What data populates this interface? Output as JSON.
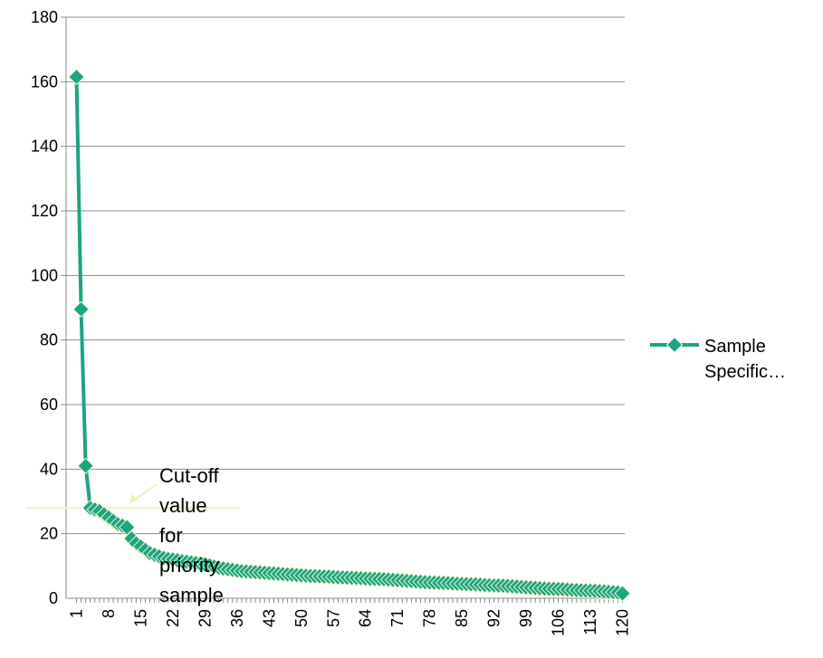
{
  "chart_data": {
    "type": "line",
    "x": [
      1,
      2,
      3,
      4,
      5,
      6,
      7,
      8,
      9,
      10,
      11,
      12,
      13,
      14,
      15,
      16,
      17,
      18,
      19,
      20,
      21,
      22,
      23,
      24,
      25,
      26,
      27,
      28,
      29,
      30,
      31,
      32,
      33,
      34,
      35,
      36,
      37,
      38,
      39,
      40,
      41,
      42,
      43,
      44,
      45,
      46,
      47,
      48,
      49,
      50,
      51,
      52,
      53,
      54,
      55,
      56,
      57,
      58,
      59,
      60,
      61,
      62,
      63,
      64,
      65,
      66,
      67,
      68,
      69,
      70,
      71,
      72,
      73,
      74,
      75,
      76,
      77,
      78,
      79,
      80,
      81,
      82,
      83,
      84,
      85,
      86,
      87,
      88,
      89,
      90,
      91,
      92,
      93,
      94,
      95,
      96,
      97,
      98,
      99,
      100,
      101,
      102,
      103,
      104,
      105,
      106,
      107,
      108,
      109,
      110,
      111,
      112,
      113,
      114,
      115,
      116,
      117,
      118,
      119,
      120
    ],
    "x_tick_labels": [
      "1",
      "8",
      "15",
      "22",
      "29",
      "36",
      "43",
      "50",
      "57",
      "64",
      "71",
      "78",
      "85",
      "92",
      "99",
      "106",
      "113",
      "120"
    ],
    "x_tick_positions": [
      1,
      8,
      15,
      22,
      29,
      36,
      43,
      50,
      57,
      64,
      71,
      78,
      85,
      92,
      99,
      106,
      113,
      120
    ],
    "series": [
      {
        "name": "Sample Specific…",
        "color": "#1aa584",
        "marker": "diamond",
        "values": [
          161.5,
          89.5,
          41,
          28,
          27.5,
          27,
          26,
          25,
          24,
          23,
          22.5,
          22,
          18.5,
          17,
          16,
          15,
          14,
          13.5,
          13,
          12.5,
          12.2,
          12,
          11.8,
          11.5,
          11.3,
          11.1,
          10.9,
          10.7,
          10.5,
          10.2,
          9.8,
          9.5,
          9.2,
          9,
          8.8,
          8.6,
          8.4,
          8.3,
          8.2,
          8.1,
          8,
          7.9,
          7.8,
          7.7,
          7.6,
          7.5,
          7.4,
          7.3,
          7.2,
          7.1,
          7,
          6.9,
          6.85,
          6.8,
          6.75,
          6.7,
          6.6,
          6.5,
          6.45,
          6.4,
          6.35,
          6.3,
          6.2,
          6.1,
          6.05,
          6,
          5.95,
          5.9,
          5.8,
          5.7,
          5.6,
          5.5,
          5.4,
          5.3,
          5.2,
          5.1,
          5,
          4.9,
          4.85,
          4.8,
          4.75,
          4.7,
          4.6,
          4.5,
          4.45,
          4.4,
          4.35,
          4.3,
          4.2,
          4.1,
          4.05,
          4,
          3.95,
          3.9,
          3.8,
          3.7,
          3.6,
          3.5,
          3.4,
          3.3,
          3.2,
          3.1,
          3,
          2.95,
          2.9,
          2.85,
          2.8,
          2.7,
          2.6,
          2.5,
          2.45,
          2.4,
          2.35,
          2.3,
          2.2,
          2.1,
          2,
          1.9,
          1.8,
          1.5
        ]
      }
    ],
    "ylim": [
      0,
      180
    ],
    "y_ticks": [
      0,
      20,
      40,
      60,
      80,
      100,
      120,
      140,
      160,
      180
    ],
    "grid": true,
    "legend_position": "right",
    "cutoff_value": 28,
    "annotation": {
      "lines": [
        "Cut-off",
        "value",
        "for",
        "priority",
        "sample"
      ],
      "color": "#f0f0c0"
    }
  }
}
